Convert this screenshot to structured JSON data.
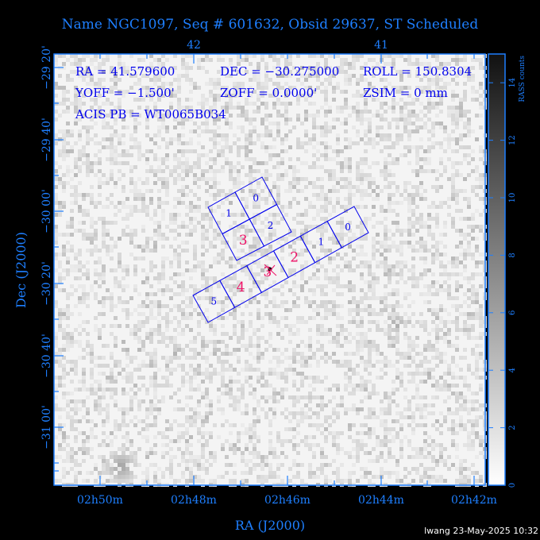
{
  "title": "Name NGC1097, Seq # 601632, Obsid 29637, ST Scheduled",
  "info": {
    "ra": "RA = 41.579600",
    "dec": "DEC = −30.275000",
    "roll": "ROLL = 150.8304",
    "yoff": "YOFF =  −1.500'",
    "zoff": "ZOFF =  0.0000'",
    "zsim": "ZSIM = 0 mm",
    "acis_pb": "ACIS PB = WT0065B034"
  },
  "footer": "lwang 23-May-2025 10:32",
  "colors": {
    "axis": "#1e7fff",
    "chips": "#0000ee",
    "aimpoint_chips": "#ee1166"
  },
  "chart_data": {
    "type": "heatmap",
    "xlabel": "RA (J2000)",
    "ylabel": "Dec (J2000)",
    "x_ticks_bottom": [
      "02h50m",
      "02h48m",
      "02h46m",
      "02h44m",
      "02h42m"
    ],
    "x_ticks_top": [
      "42",
      "41"
    ],
    "y_ticks": [
      "−29 20'",
      "−29 40'",
      "−30 00'",
      "−30 20'",
      "−30 40'",
      "−31 00'"
    ],
    "colorbar": {
      "label": "RASS counts",
      "ticks": [
        "0",
        "2",
        "4",
        "6",
        "8",
        "10",
        "12",
        "14"
      ],
      "range": [
        0,
        15
      ],
      "colormap": "white-to-black"
    },
    "i_array_chips": [
      "0",
      "1",
      "2",
      "3"
    ],
    "s_array_chips": [
      "0",
      "1",
      "2",
      "3",
      "4",
      "5"
    ],
    "highlighted_chips": [
      "I3",
      "S2",
      "S3",
      "S4"
    ]
  }
}
